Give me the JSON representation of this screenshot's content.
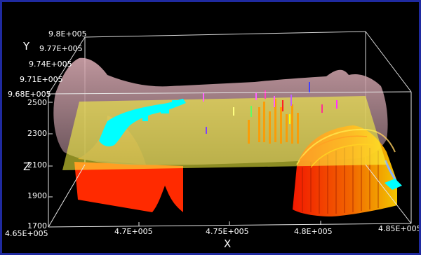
{
  "axes": {
    "x": {
      "title": "X",
      "ticks": [
        "4.65E+005",
        "4.7E+005",
        "4.75E+005",
        "4.8E+005",
        "4.85E+005"
      ]
    },
    "y": {
      "title": "Y",
      "ticks": [
        "9.8E+005",
        "9.77E+005",
        "9.74E+005",
        "9.71E+005",
        "9.68E+005"
      ]
    },
    "z": {
      "title": "Z",
      "ticks": [
        "2500",
        "2300",
        "2100",
        "1900",
        "1700"
      ]
    }
  },
  "colors": {
    "background": "#000000",
    "frame_border": "#1f2aa0",
    "surface": "#c9a0a8",
    "plane": "#ffff40",
    "cyan_bodies": "#00ffff",
    "solid_red": "#ff2a00",
    "solid_orange": "#ff9a00"
  }
}
